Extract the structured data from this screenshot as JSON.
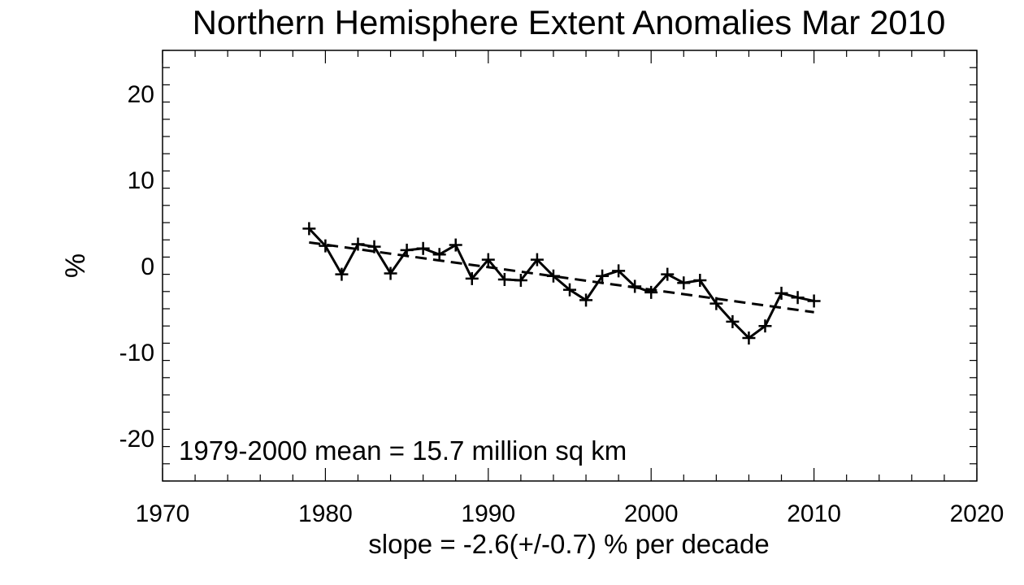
{
  "chart_data": {
    "type": "line",
    "title": "Northern Hemisphere Extent Anomalies Mar 2010",
    "ylabel": "%",
    "xlabel": "",
    "xlim": [
      1970,
      2020
    ],
    "ylim": [
      -25,
      25
    ],
    "x_ticks": [
      1970,
      1980,
      1990,
      2000,
      2010,
      2020
    ],
    "y_ticks": [
      -20,
      -10,
      0,
      10,
      20
    ],
    "x_tick_labels": [
      "1970",
      "1980",
      "1990",
      "2000",
      "2010",
      "2020"
    ],
    "y_tick_labels": [
      "-20",
      "-10",
      "0",
      "10",
      "20"
    ],
    "annotation": "1979-2000 mean =  15.7 million sq km",
    "slope_text": "slope =  -2.6(+/-0.7) % per decade",
    "grid": false,
    "series": [
      {
        "style": "solid-with-plus-markers",
        "x": [
          1979,
          1980,
          1981,
          1982,
          1983,
          1984,
          1985,
          1986,
          1987,
          1988,
          1989,
          1990,
          1991,
          1992,
          1993,
          1994,
          1995,
          1996,
          1997,
          1998,
          1999,
          2000,
          2001,
          2002,
          2003,
          2004,
          2005,
          2006,
          2007,
          2008,
          2009,
          2010
        ],
        "y": [
          4.3,
          2.3,
          -1.0,
          2.5,
          2.2,
          -0.9,
          1.8,
          2.0,
          1.3,
          2.4,
          -1.5,
          0.7,
          -1.6,
          -1.7,
          0.7,
          -1.2,
          -2.8,
          -4.0,
          -1.2,
          -0.6,
          -2.4,
          -3.1,
          -1.0,
          -2.0,
          -1.7,
          -4.4,
          -6.5,
          -8.4,
          -7.0,
          -3.2,
          -3.7,
          -4.1
        ]
      },
      {
        "style": "dashed-trend",
        "x": [
          1979,
          2010
        ],
        "y": [
          2.7,
          -5.4
        ]
      }
    ]
  }
}
